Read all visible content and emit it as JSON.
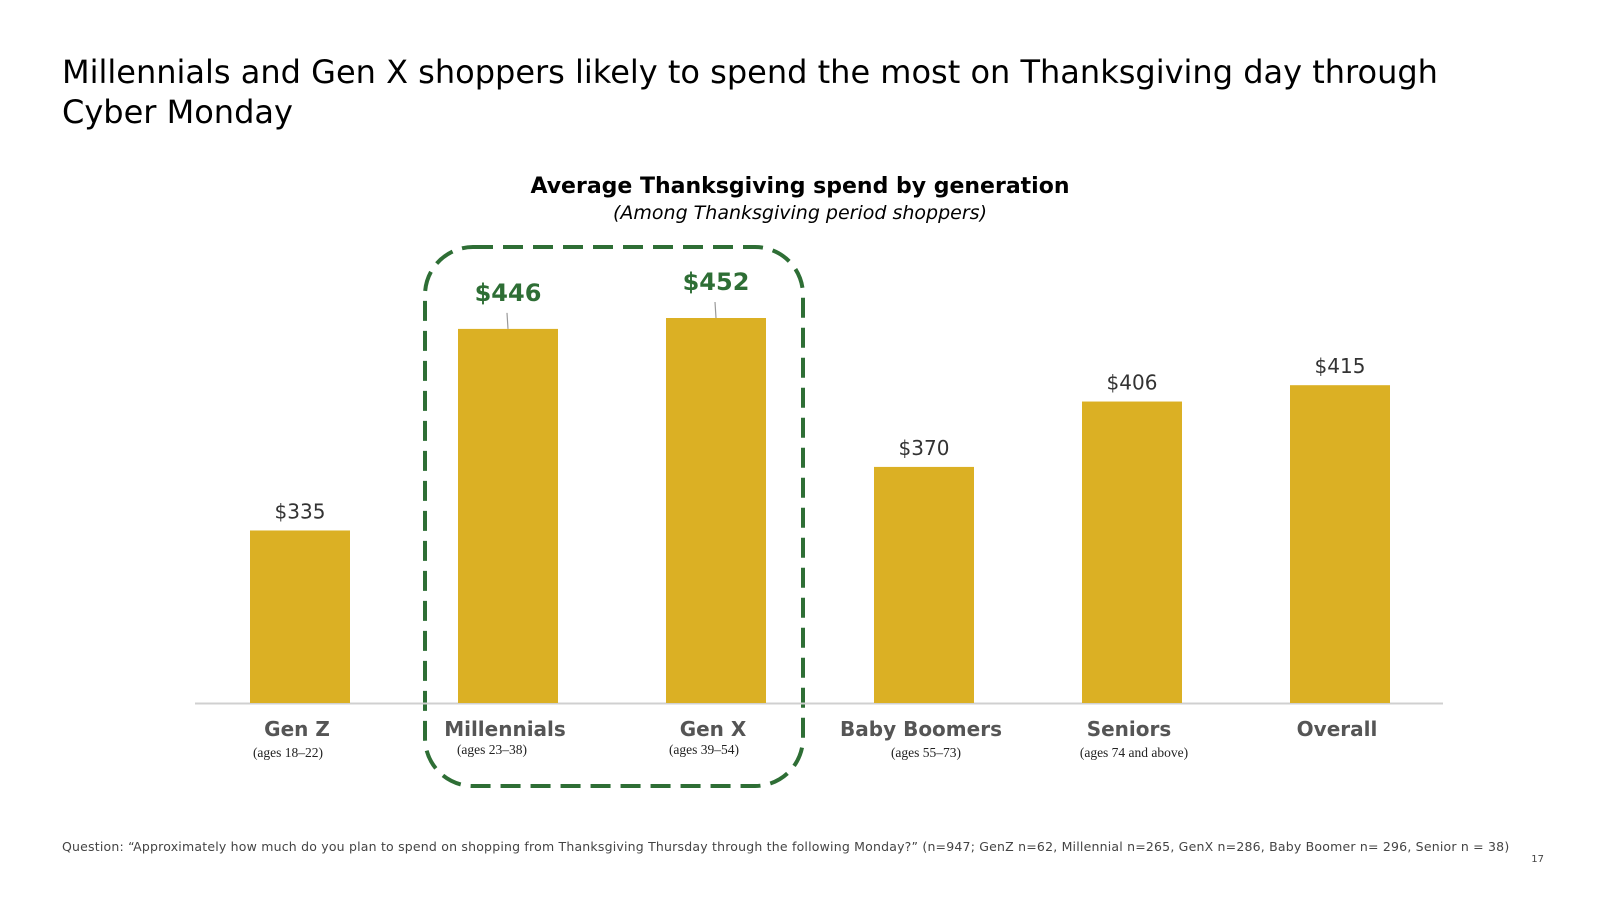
{
  "slide": {
    "title": "Millennials and Gen X shoppers likely to spend the most on Thanksgiving day through Cyber Monday",
    "footnote": "Question: “Approximately how much do you plan to spend on shopping from Thanksgiving Thursday through the following Monday?” (n=947; GenZ n=62, Millennial n=265, GenX n=286, Baby Boomer n= 296, Senior n = 38)",
    "page_number": "17"
  },
  "chart_data": {
    "type": "bar",
    "title": "Average Thanksgiving spend by generation",
    "subtitle": "(Among Thanksgiving period shoppers)",
    "categories": [
      "Gen Z",
      "Millennials",
      "Gen X",
      "Baby Boomers",
      "Seniors",
      "Overall"
    ],
    "sublabels": [
      "(ages 18–22)",
      "(ages 23–38)",
      "(ages 39–54)",
      "(ages 55–73)",
      "(ages 74 and above)",
      ""
    ],
    "values": [
      335,
      446,
      452,
      370,
      406,
      415
    ],
    "data_labels": [
      "$335",
      "$446",
      "$452",
      "$370",
      "$406",
      "$415"
    ],
    "highlighted": [
      "Millennials",
      "Gen X"
    ],
    "ylim": [
      240,
      480
    ],
    "xlabel": "",
    "ylabel": "",
    "grid": false,
    "colors": {
      "bar": "#DBB024",
      "highlight": "#2E6E35",
      "label": "#333333",
      "category_label": "#555555",
      "axis": "#D0D0D0"
    }
  }
}
